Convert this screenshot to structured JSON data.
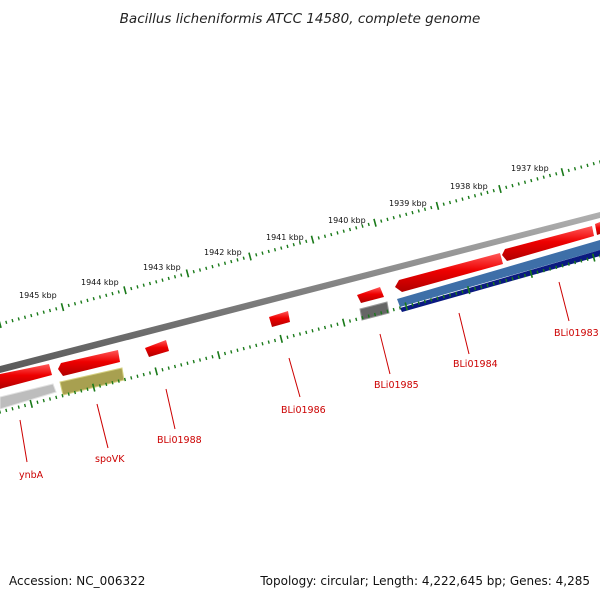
{
  "title": "Bacillus licheniformis ATCC 14580, complete genome",
  "footer": {
    "accession": "Accession: NC_006322",
    "summary": "Topology: circular; Length: 4,222,645 bp; Genes: 4,285"
  },
  "kbp_ticks": [
    "1945 kbp",
    "1944 kbp",
    "1943 kbp",
    "1942 kbp",
    "1941 kbp",
    "1940 kbp",
    "1939 kbp",
    "1938 kbp",
    "1937 kbp"
  ],
  "gene_labels": [
    "ynbA",
    "spoVK",
    "BLi01988",
    "BLi01986",
    "BLi01985",
    "BLi01984",
    "BLi01983"
  ],
  "colors": {
    "forward_cds": "#ee0000",
    "reverse_cds": "#ee0000",
    "backbone": "#808080",
    "ticks": "#1a7a1a",
    "gene_label": "#cc0000",
    "trna_like": "#a8a050",
    "blue_track": "#3e6fa8",
    "navy_track": "#0a1a80",
    "grey_feature": "#666666",
    "light_grey_feature": "#bdbdbd"
  }
}
